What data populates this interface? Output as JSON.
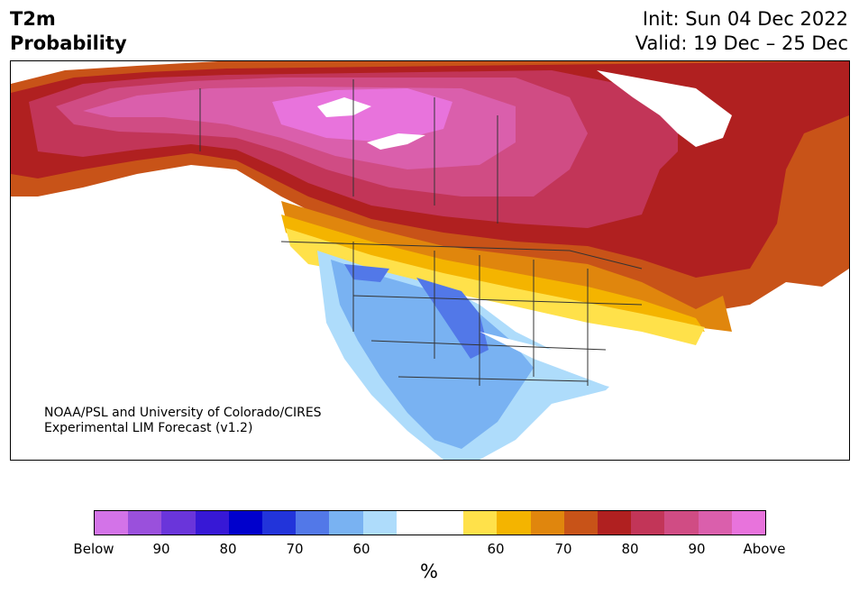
{
  "header": {
    "title_line1": "T2m",
    "title_line2": "Probability",
    "init_label": "Init: Sun 04 Dec 2022",
    "valid_label": "Valid: 19 Dec – 25 Dec"
  },
  "credit": {
    "line1": "NOAA/PSL and University of Colorado/CIRES",
    "line2": "Experimental LIM Forecast (v1.2)"
  },
  "colorbar": {
    "colors": [
      "#d373e8",
      "#9a50dc",
      "#6a35da",
      "#3718d6",
      "#0000cc",
      "#2234da",
      "#5278e8",
      "#79b2f2",
      "#aedcfb",
      "#ffffff",
      "#ffffff",
      "#ffe14a",
      "#f4b400",
      "#e0860d",
      "#c85318",
      "#b02020",
      "#c23558",
      "#d04c84",
      "#da5fac",
      "#e873dc"
    ],
    "tick_labels": [
      "Below",
      "90",
      "80",
      "70",
      "60",
      "60",
      "70",
      "80",
      "90",
      "Above"
    ],
    "unit": "%"
  },
  "map": {
    "land_color": "#ffffff",
    "border_color": "#333333"
  }
}
